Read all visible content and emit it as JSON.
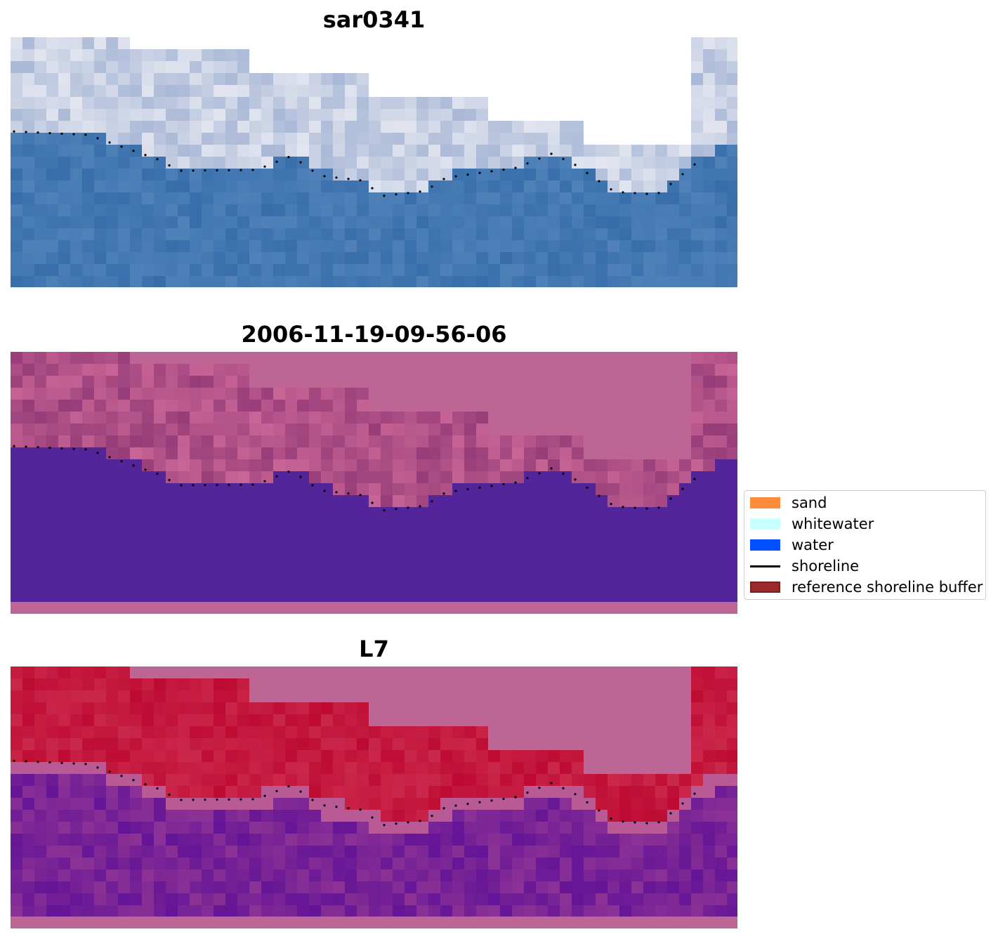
{
  "panels": [
    {
      "title": "sar0341"
    },
    {
      "title": "2006-11-19-09-56-06"
    },
    {
      "title": "L7"
    }
  ],
  "legend": {
    "items": [
      {
        "label": "sand",
        "color": "#ff8c3c"
      },
      {
        "label": "whitewater",
        "color": "#c8ffff"
      },
      {
        "label": "water",
        "color": "#0050ff"
      },
      {
        "label": "shoreline",
        "color": "#000000"
      },
      {
        "label": "reference shoreline buffer",
        "color": "#9b2b2b"
      }
    ]
  },
  "colors": {
    "nodata_rgb": "#ffffff",
    "nodata_overlay": "#bd6595",
    "water_class": "#53249a",
    "land_index": "#c0143c",
    "water_index": "#6a1b9a"
  }
}
